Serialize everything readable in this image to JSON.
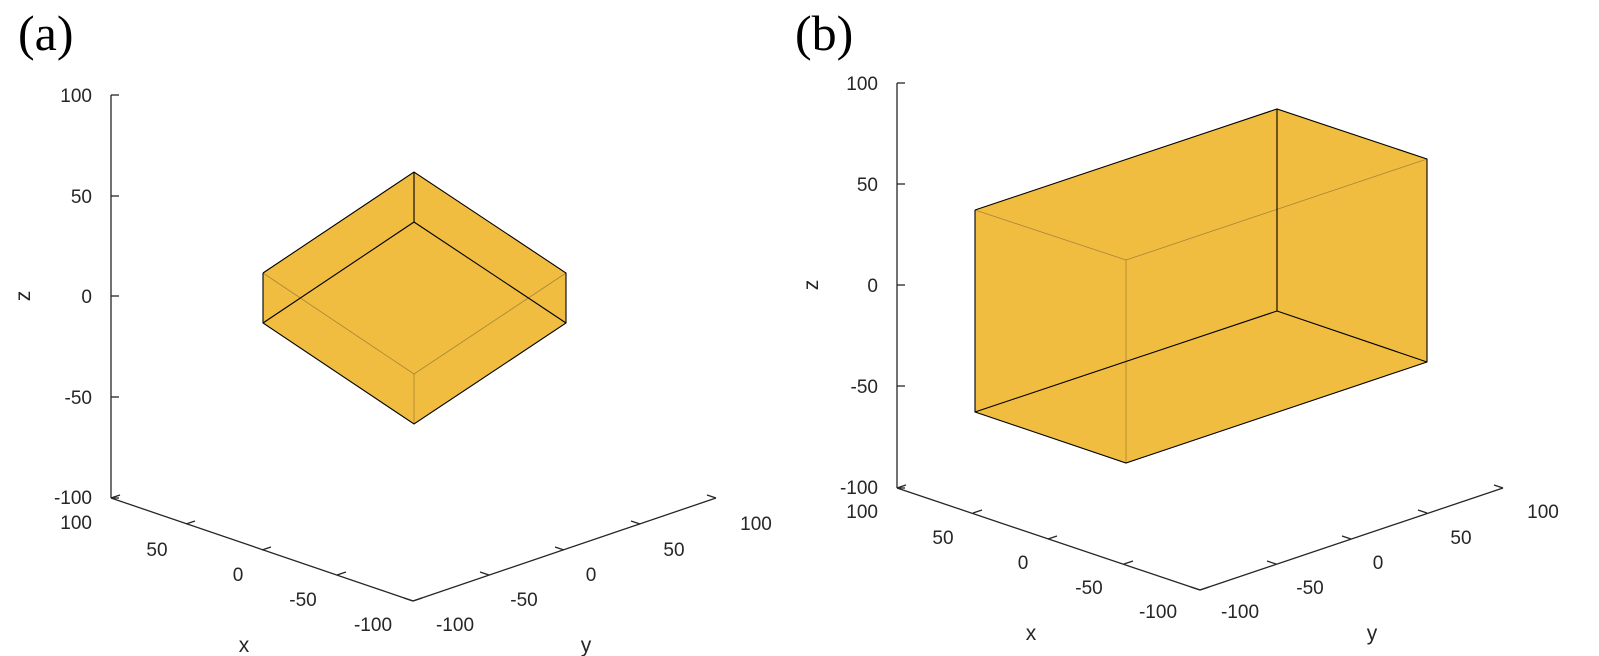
{
  "panels": [
    {
      "label": "(a)",
      "box": {
        "x": [
          -50,
          50
        ],
        "y": [
          -50,
          50
        ],
        "z": [
          -25,
          25
        ],
        "color": "#EDB120"
      },
      "axes": {
        "z": {
          "label": "z",
          "ticks": [
            "100",
            "50",
            "0",
            "-50",
            "-100"
          ]
        },
        "x": {
          "label": "x",
          "ticks": [
            "100",
            "50",
            "0",
            "-50",
            "-100"
          ]
        },
        "y": {
          "label": "y",
          "ticks": [
            "-100",
            "-50",
            "0",
            "50",
            "100"
          ]
        }
      }
    },
    {
      "label": "(b)",
      "box": {
        "x": [
          -50,
          50
        ],
        "y": [
          -100,
          100
        ],
        "z": [
          -50,
          50
        ],
        "color": "#EDB120"
      },
      "axes": {
        "z": {
          "label": "z",
          "ticks": [
            "100",
            "50",
            "0",
            "-50",
            "-100"
          ]
        },
        "x": {
          "label": "x",
          "ticks": [
            "100",
            "50",
            "0",
            "-50",
            "-100"
          ]
        },
        "y": {
          "label": "y",
          "ticks": [
            "-100",
            "-50",
            "0",
            "50",
            "100"
          ]
        }
      }
    }
  ]
}
